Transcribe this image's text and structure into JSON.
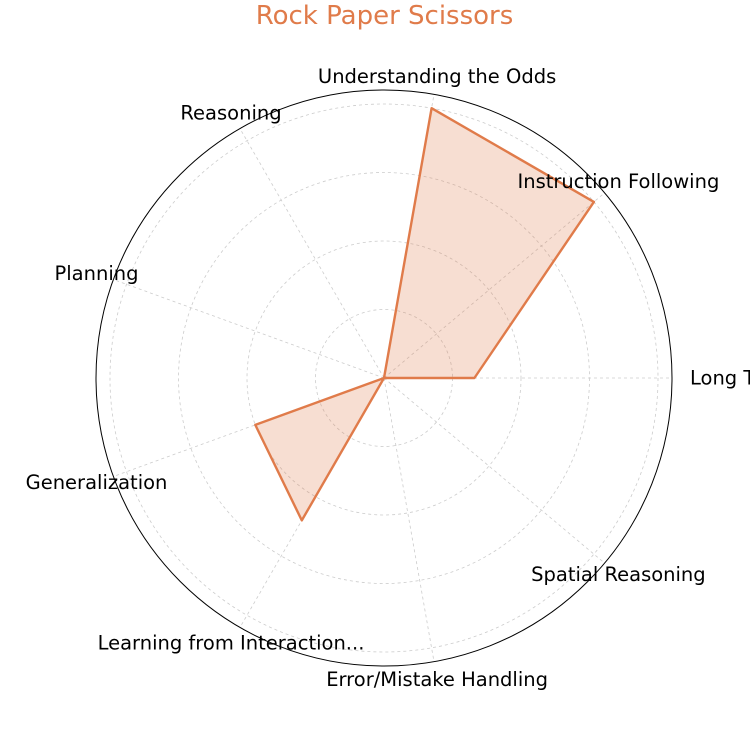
{
  "chart_data": {
    "type": "radar",
    "title": "Rock Paper Scissors",
    "categories": [
      "Long Text Understanding",
      "Instruction Following",
      "Understanding the Odds",
      "Reasoning",
      "Planning",
      "Generalization",
      "Learning from Interaction...",
      "Error/Mistake Handling",
      "Spatial Reasoning"
    ],
    "series": [
      {
        "values": [
          0.33,
          1.0,
          1.0,
          0,
          0,
          0.5,
          0.6,
          0,
          0
        ]
      }
    ],
    "rlim": [
      0,
      1.0
    ],
    "grid": true,
    "accent_color": "#E07B4A",
    "fill_color": "#E07B4A"
  }
}
